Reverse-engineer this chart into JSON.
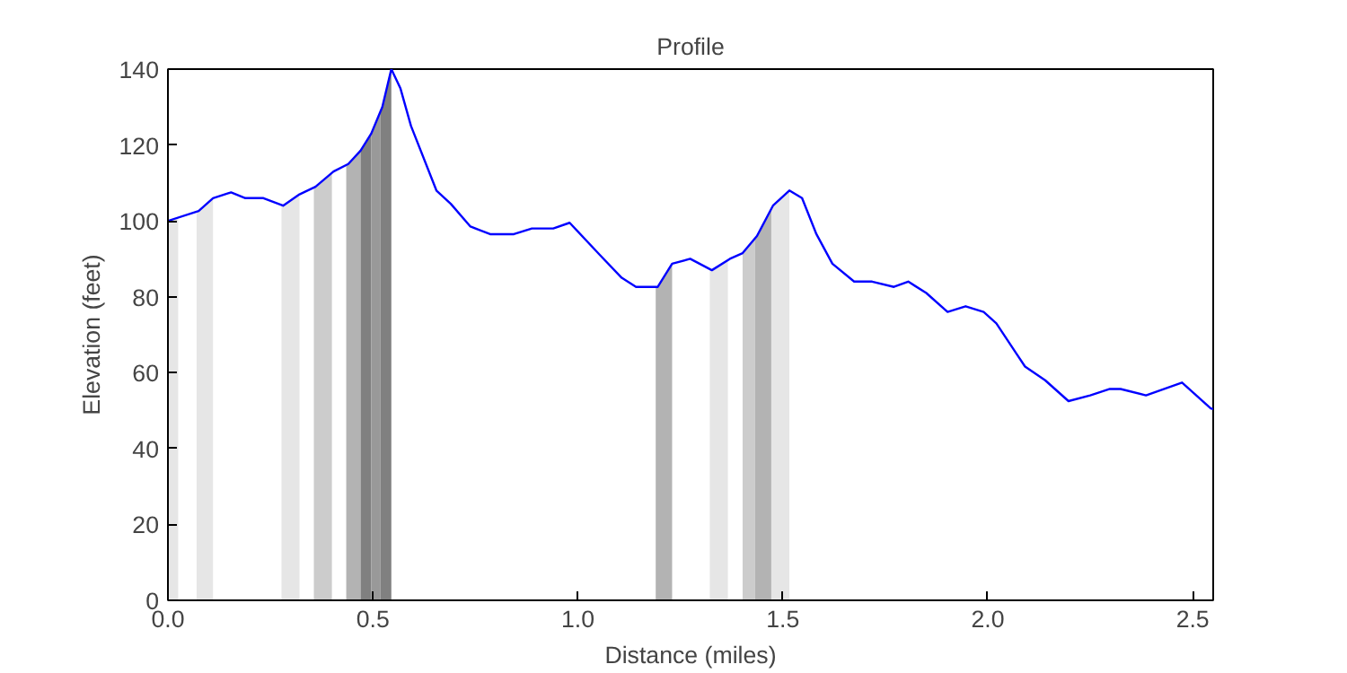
{
  "chart_data": {
    "type": "line",
    "title": "Profile",
    "xlabel": "Distance (miles)",
    "ylabel": "Elevation (feet)",
    "xlim": [
      0,
      2.55
    ],
    "ylim": [
      0,
      140
    ],
    "xticks": [
      {
        "value": 0,
        "label": "0.0"
      },
      {
        "value": 0.5,
        "label": "0.5"
      },
      {
        "value": 1,
        "label": "1.0"
      },
      {
        "value": 1.5,
        "label": "1.5"
      },
      {
        "value": 2,
        "label": "2.0"
      },
      {
        "value": 2.5,
        "label": "2.5"
      }
    ],
    "yticks": [
      0,
      20,
      40,
      60,
      80,
      100,
      120,
      140
    ],
    "grid": false,
    "series": [
      {
        "color": "#0000ff",
        "x": [
          0,
          0.075,
          0.11,
          0.154,
          0.189,
          0.233,
          0.281,
          0.321,
          0.36,
          0.404,
          0.44,
          0.47,
          0.496,
          0.523,
          0.545,
          0.567,
          0.593,
          0.655,
          0.69,
          0.738,
          0.786,
          0.844,
          0.888,
          0.94,
          0.98,
          1.054,
          1.107,
          1.142,
          1.195,
          1.23,
          1.274,
          1.327,
          1.371,
          1.402,
          1.437,
          1.476,
          1.516,
          1.547,
          1.582,
          1.621,
          1.674,
          1.718,
          1.771,
          1.806,
          1.85,
          1.902,
          1.946,
          1.99,
          2.021,
          2.07,
          2.091,
          2.14,
          2.197,
          2.25,
          2.298,
          2.324,
          2.386,
          2.474,
          2.544,
          2.55
        ],
        "values": [
          100,
          102.6,
          106,
          107.5,
          106,
          106,
          104,
          107,
          109,
          113,
          115,
          118.5,
          123,
          130,
          140,
          135,
          125,
          108,
          104.5,
          98.5,
          96.5,
          96.5,
          98,
          98,
          99.5,
          91,
          85,
          82.6,
          82.6,
          88.7,
          90,
          87,
          90,
          91.5,
          96,
          104,
          108,
          106,
          96.5,
          88.7,
          84,
          84,
          82.6,
          84,
          81,
          76,
          77.5,
          76,
          73,
          65,
          61.6,
          58,
          52.5,
          54,
          55.7,
          55.7,
          54,
          57.4,
          50.6,
          50.4
        ]
      }
    ],
    "bands": [
      {
        "axis": "x",
        "from": 0,
        "to": 0.025,
        "color": "#e6e6e6"
      },
      {
        "axis": "x",
        "from": 0.07,
        "to": 0.11,
        "color": "#e6e6e6"
      },
      {
        "axis": "x",
        "from": 0.277,
        "to": 0.321,
        "color": "#e6e6e6"
      },
      {
        "axis": "x",
        "from": 0.356,
        "to": 0.4,
        "color": "#cccccc"
      },
      {
        "axis": "x",
        "from": 0.435,
        "to": 0.47,
        "color": "#b3b3b3"
      },
      {
        "axis": "x",
        "from": 0.47,
        "to": 0.496,
        "color": "#808080"
      },
      {
        "axis": "x",
        "from": 0.496,
        "to": 0.518,
        "color": "#999999"
      },
      {
        "axis": "x",
        "from": 0.518,
        "to": 0.545,
        "color": "#808080"
      },
      {
        "axis": "x",
        "from": 1.19,
        "to": 1.23,
        "color": "#b3b3b3"
      },
      {
        "axis": "x",
        "from": 1.322,
        "to": 1.366,
        "color": "#e6e6e6"
      },
      {
        "axis": "x",
        "from": 1.402,
        "to": 1.432,
        "color": "#cccccc"
      },
      {
        "axis": "x",
        "from": 1.432,
        "to": 1.472,
        "color": "#b3b3b3"
      },
      {
        "axis": "x",
        "from": 1.472,
        "to": 1.516,
        "color": "#e6e6e6"
      }
    ]
  }
}
